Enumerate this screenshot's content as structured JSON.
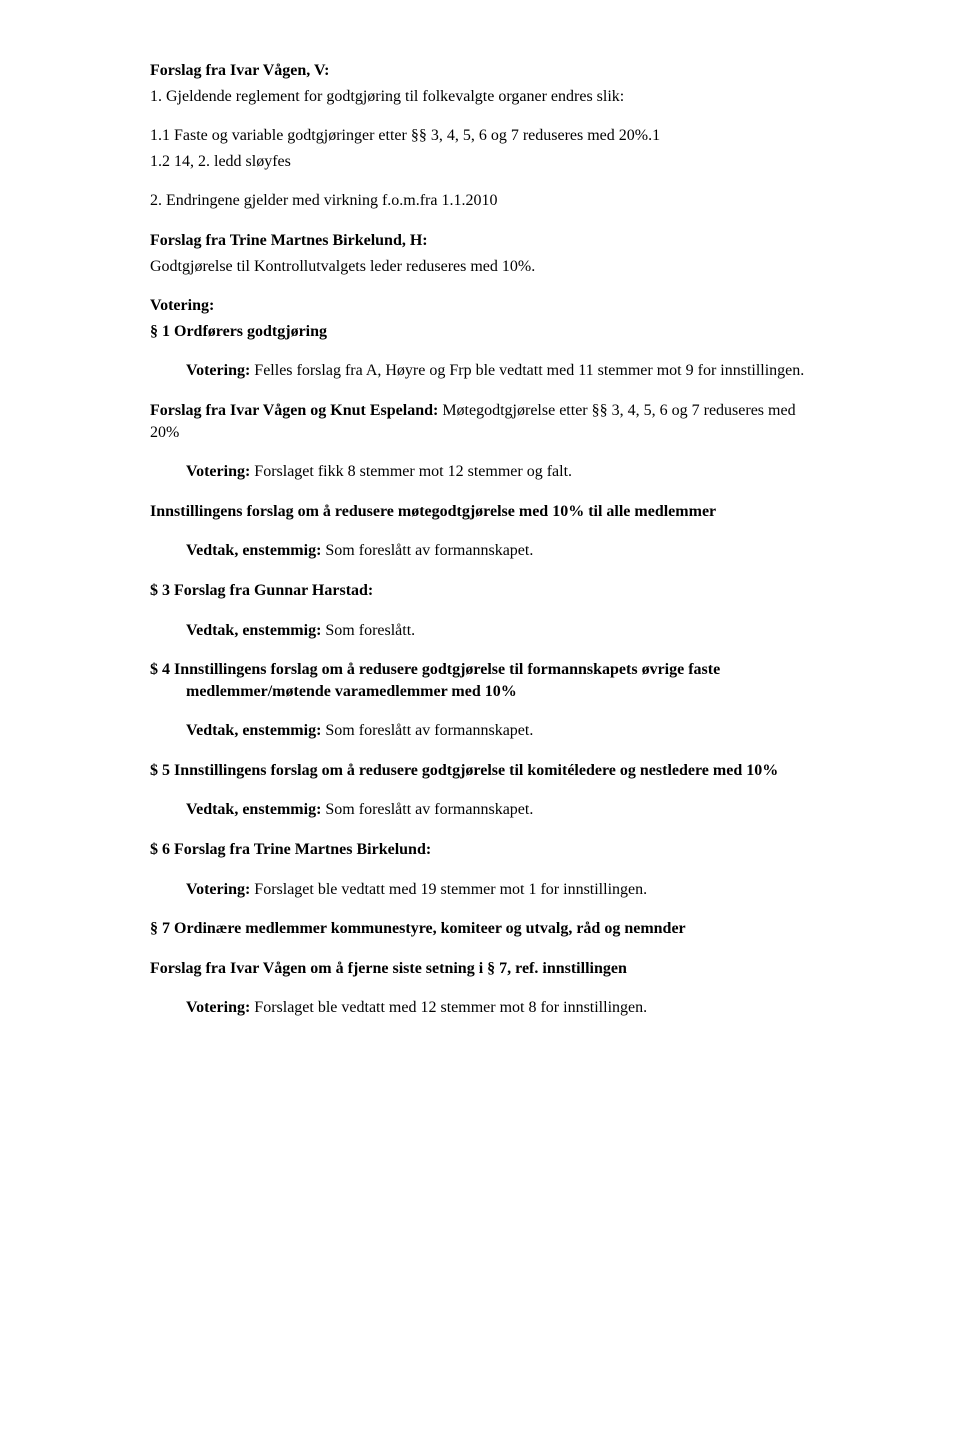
{
  "doc": {
    "p1_heading": "Forslag fra Ivar Vågen, V:",
    "p1_item1": "1.  Gjeldende reglement for godtgjøring til folkevalgte organer endres slik:",
    "p2": "1.1 Faste og variable godtgjøringer etter §§ 3, 4, 5, 6 og 7 reduseres med 20%.1",
    "p3": "1.2 14, 2. ledd sløyfes",
    "p4": "2.  Endringene gjelder med virkning f.o.m.fra 1.1.2010",
    "p5_h": "Forslag fra Trine Martnes Birkelund, H:",
    "p5_b": "Godtgjørelse til Kontrollutvalgets leder reduseres med 10%.",
    "p6a": "Votering:",
    "p6b": "§ 1 Ordførers godtgjøring",
    "p7_run_b": "Votering:",
    "p7_run_t": " Felles forslag fra A, Høyre og Frp ble vedtatt med 11 stemmer mot 9 for innstillingen.",
    "p8_b": "Forslag fra Ivar Vågen og Knut Espeland:",
    "p8_t": " Møtegodtgjørelse etter §§ 3, 4, 5, 6 og 7 reduseres med 20%",
    "p9_b": "Votering:",
    "p9_t": " Forslaget fikk 8 stemmer mot 12 stemmer og falt.",
    "p10": "Innstillingens forslag om å redusere møtegodtgjørelse med 10% til alle medlemmer",
    "p11_b": "Vedtak, enstemmig:",
    "p11_t": " Som foreslått av formannskapet.",
    "p12": "$ 3 Forslag fra Gunnar Harstad:",
    "p13_b": "Vedtak, enstemmig:",
    "p13_t": " Som foreslått.",
    "p14_pre": "$ 4  ",
    "p14": "Innstillingens forslag om å redusere godtgjørelse til formannskapets øvrige faste medlemmer/møtende varamedlemmer med 10%",
    "p15_b": "Vedtak, enstemmig:",
    "p15_t": " Som foreslått av formannskapet.",
    "p16_pre": "$ 5  ",
    "p16": "Innstillingens forslag om å redusere godtgjørelse til komitéledere og nestledere med 10%",
    "p17_b": "Vedtak, enstemmig:",
    "p17_t": " Som foreslått av formannskapet.",
    "p18": "$ 6  Forslag fra Trine Martnes Birkelund:",
    "p19_b": "Votering:",
    "p19_t": " Forslaget  ble vedtatt med 19 stemmer mot 1 for innstillingen.",
    "p20": "§ 7 Ordinære medlemmer kommunestyre, komiteer og utvalg, råd og nemnder",
    "p21": "Forslag fra Ivar Vågen om å fjerne siste setning i § 7, ref. innstillingen",
    "p22_b": "Votering:",
    "p22_t": " Forslaget  ble vedtatt med 12 stemmer mot 8 for innstillingen."
  }
}
